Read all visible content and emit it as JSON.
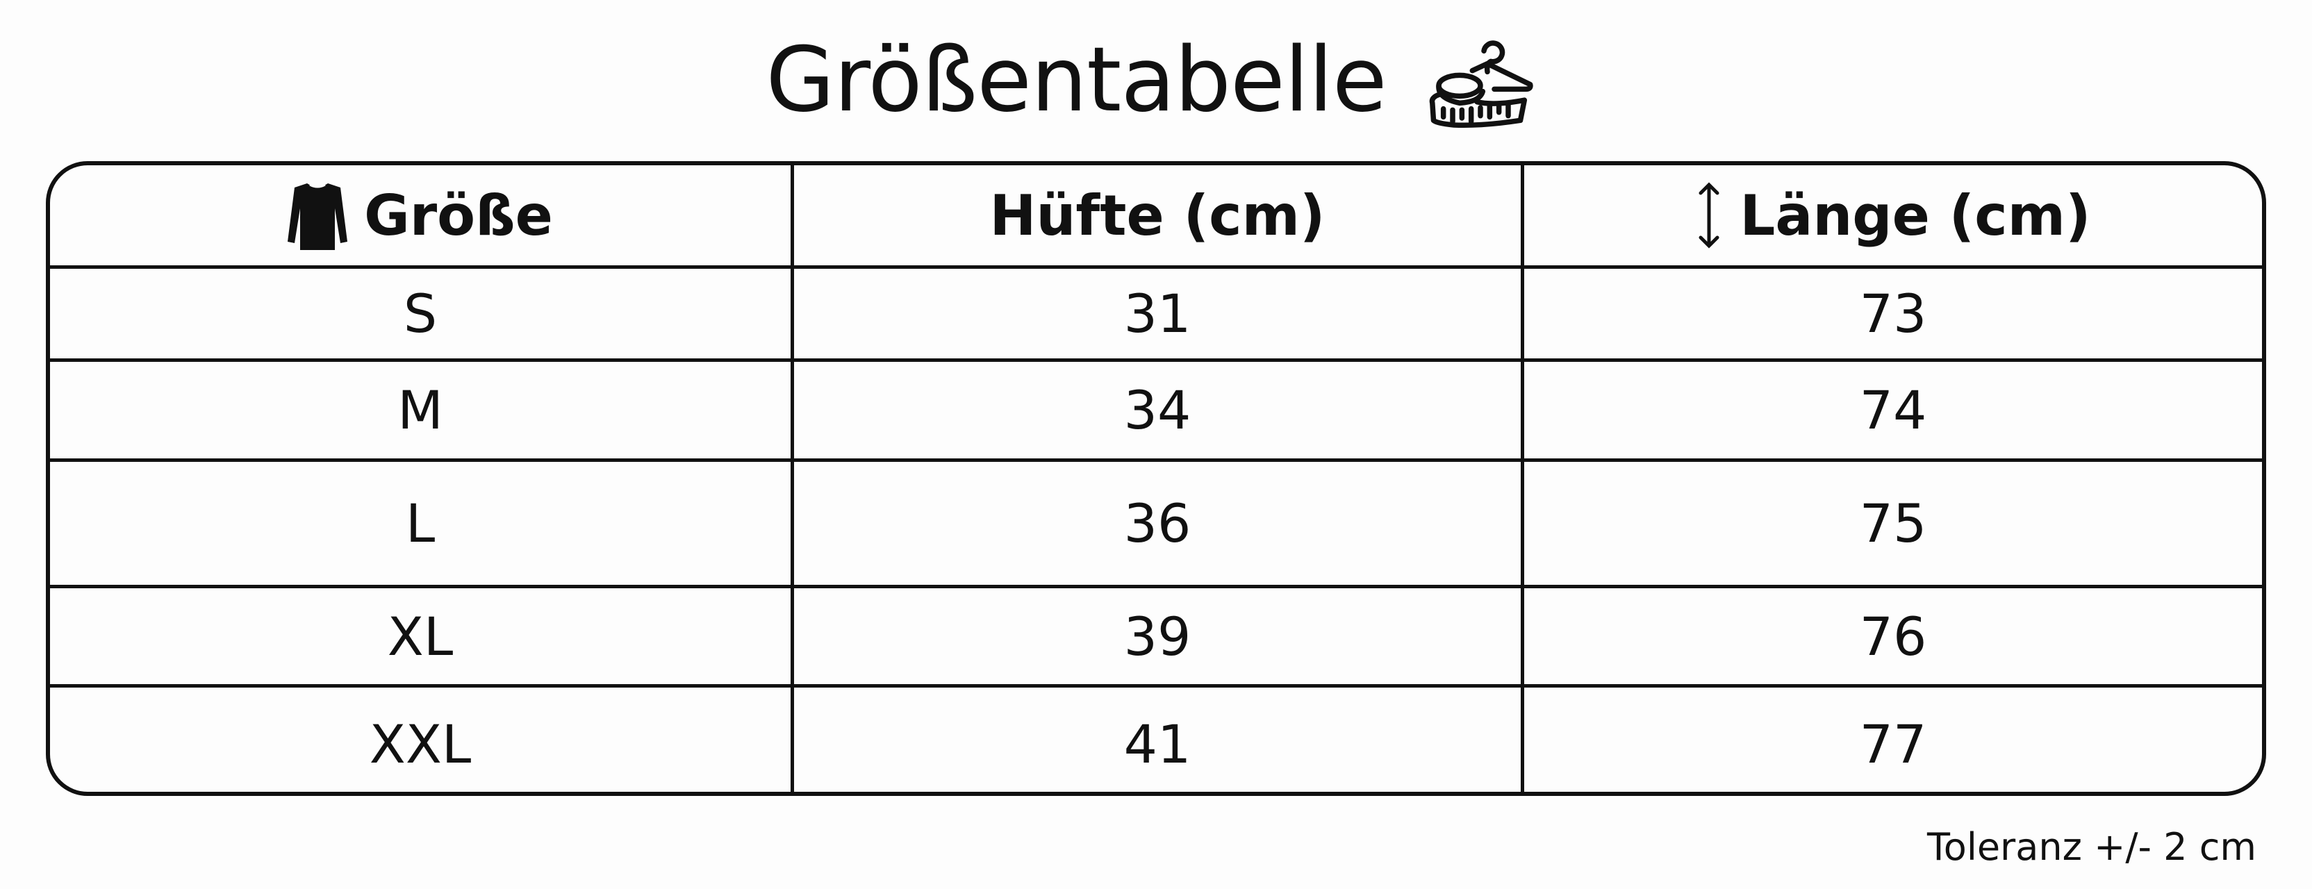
{
  "title": "Größentabelle",
  "title_icon": "hanger-measuring-tape-icon",
  "headers": [
    {
      "label": "Größe",
      "icon": "shirt-icon"
    },
    {
      "label": "Hüfte (cm)"
    },
    {
      "label": "Länge (cm)",
      "icon": "vertical-arrow-icon"
    }
  ],
  "rows": [
    [
      "S",
      "31",
      "73"
    ],
    [
      "M",
      "34",
      "74"
    ],
    [
      "L",
      "36",
      "75"
    ],
    [
      "XL",
      "39",
      "76"
    ],
    [
      "XXL",
      "41",
      "77"
    ]
  ],
  "footnote": "Toleranz +/- 2 cm"
}
